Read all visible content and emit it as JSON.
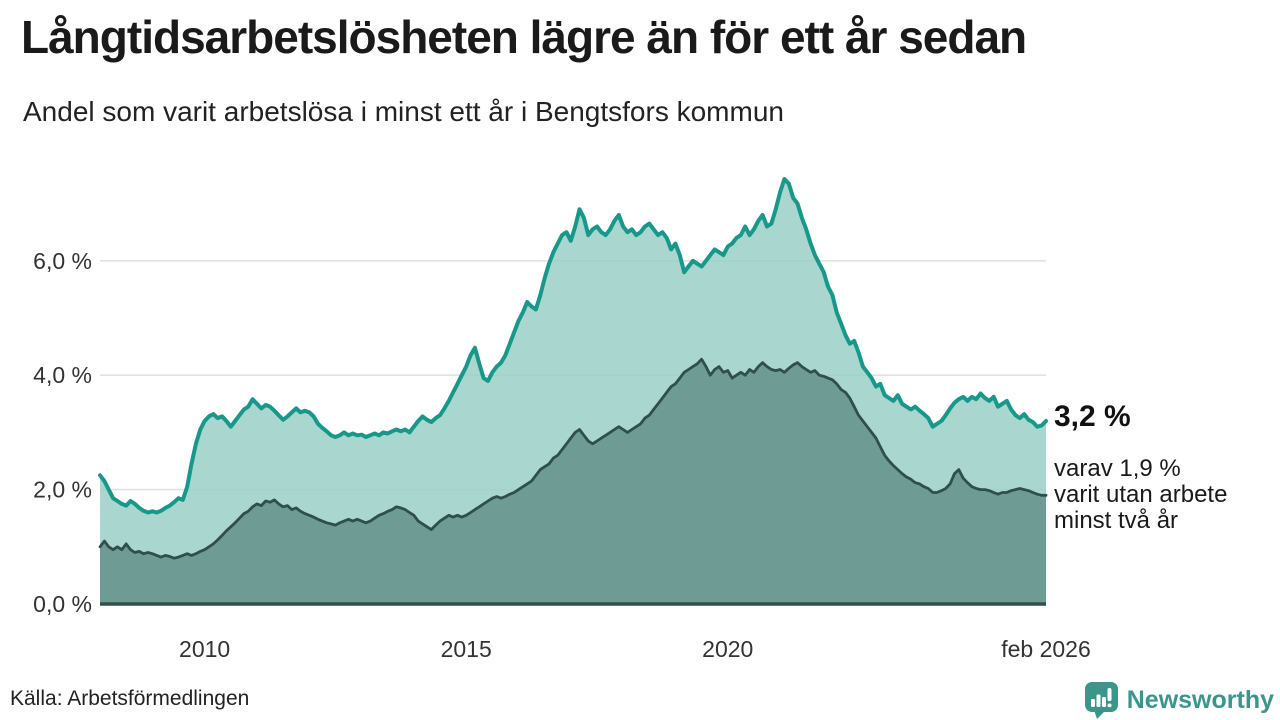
{
  "header": {
    "title": "Långtidsarbetslösheten lägre än för ett år sedan",
    "subtitle": "Andel som varit arbetslösa i minst ett år i Bengtsfors kommun"
  },
  "annotation": {
    "value_label": "3,2 %",
    "detail": "varav 1,9 %\nvarit utan arbete\nminst två år"
  },
  "footer": {
    "source": "Källa: Arbetsförmedlingen",
    "logo_text": "Newsworthy"
  },
  "colors": {
    "grid": "#e2e2e2",
    "baseline": "#35504c",
    "axis_text": "#333333",
    "logo_teal": "#3b958b",
    "title_text": "#1a1a1a"
  },
  "chart_data": {
    "type": "area",
    "title": "Långtidsarbetslösheten lägre än för ett år sedan",
    "subtitle": "Andel som varit arbetslösa i minst ett år i Bengtsfors kommun",
    "unit": "%",
    "x_domain": [
      2008.0,
      2026.0833
    ],
    "x_step": 0.0833333,
    "ylim": [
      0,
      7.6
    ],
    "grid": true,
    "legend": "none",
    "y_ticks": [
      {
        "value": 6,
        "label": "6,0 %"
      },
      {
        "value": 4,
        "label": "4,0 %"
      },
      {
        "value": 2,
        "label": "2,0 %"
      },
      {
        "value": 0,
        "label": "0,0 %"
      }
    ],
    "x_ticks": [
      {
        "value": 2010,
        "label": "2010"
      },
      {
        "value": 2015,
        "label": "2015"
      },
      {
        "value": 2020,
        "label": "2020"
      },
      {
        "value": 2026.0833,
        "label": "feb 2026"
      }
    ],
    "series": [
      {
        "name": "Arbetslösa minst ett år",
        "end_value_label": "3,2 %",
        "line_color": "#18988a",
        "line_width": 4,
        "fill_color": "#96cdc4",
        "fill_opacity": 0.82,
        "values": [
          2.25,
          2.15,
          2.0,
          1.85,
          1.8,
          1.75,
          1.72,
          1.8,
          1.75,
          1.68,
          1.63,
          1.6,
          1.62,
          1.6,
          1.63,
          1.68,
          1.72,
          1.78,
          1.85,
          1.82,
          2.05,
          2.45,
          2.8,
          3.05,
          3.2,
          3.28,
          3.32,
          3.25,
          3.28,
          3.2,
          3.1,
          3.2,
          3.3,
          3.4,
          3.45,
          3.58,
          3.5,
          3.42,
          3.48,
          3.45,
          3.38,
          3.3,
          3.22,
          3.28,
          3.35,
          3.42,
          3.35,
          3.38,
          3.35,
          3.28,
          3.15,
          3.08,
          3.02,
          2.95,
          2.92,
          2.95,
          3.0,
          2.95,
          2.98,
          2.95,
          2.96,
          2.92,
          2.95,
          2.98,
          2.95,
          3.0,
          2.98,
          3.02,
          3.05,
          3.02,
          3.05,
          3.0,
          3.1,
          3.2,
          3.28,
          3.22,
          3.18,
          3.25,
          3.3,
          3.42,
          3.55,
          3.7,
          3.85,
          4.0,
          4.15,
          4.35,
          4.48,
          4.2,
          3.95,
          3.9,
          4.05,
          4.15,
          4.22,
          4.35,
          4.55,
          4.75,
          4.95,
          5.1,
          5.28,
          5.2,
          5.15,
          5.4,
          5.7,
          5.95,
          6.15,
          6.3,
          6.45,
          6.5,
          6.35,
          6.6,
          6.9,
          6.75,
          6.45,
          6.55,
          6.6,
          6.5,
          6.45,
          6.55,
          6.7,
          6.8,
          6.6,
          6.5,
          6.55,
          6.45,
          6.5,
          6.6,
          6.65,
          6.55,
          6.45,
          6.5,
          6.4,
          6.2,
          6.3,
          6.1,
          5.8,
          5.9,
          6.0,
          5.95,
          5.9,
          6.0,
          6.1,
          6.2,
          6.15,
          6.1,
          6.25,
          6.3,
          6.4,
          6.45,
          6.6,
          6.45,
          6.55,
          6.7,
          6.8,
          6.6,
          6.65,
          6.9,
          7.2,
          7.43,
          7.35,
          7.1,
          7.0,
          6.75,
          6.55,
          6.3,
          6.1,
          5.95,
          5.8,
          5.55,
          5.4,
          5.1,
          4.9,
          4.7,
          4.55,
          4.6,
          4.4,
          4.15,
          4.05,
          3.95,
          3.8,
          3.85,
          3.65,
          3.6,
          3.55,
          3.65,
          3.5,
          3.45,
          3.4,
          3.45,
          3.38,
          3.32,
          3.25,
          3.1,
          3.15,
          3.2,
          3.3,
          3.42,
          3.52,
          3.58,
          3.62,
          3.55,
          3.62,
          3.58,
          3.68,
          3.6,
          3.55,
          3.62,
          3.45,
          3.5,
          3.55,
          3.4,
          3.3,
          3.25,
          3.32,
          3.22,
          3.18,
          3.1,
          3.12,
          3.2
        ]
      },
      {
        "name": "Arbetslösa minst två år",
        "end_value_label": "1,9 %",
        "line_color": "#2e4f4b",
        "line_width": 2.8,
        "fill_color": "#67938d",
        "fill_opacity": 0.88,
        "values": [
          1.0,
          1.1,
          1.0,
          0.95,
          1.0,
          0.95,
          1.05,
          0.95,
          0.9,
          0.92,
          0.88,
          0.9,
          0.88,
          0.85,
          0.82,
          0.85,
          0.83,
          0.8,
          0.82,
          0.85,
          0.88,
          0.85,
          0.88,
          0.92,
          0.95,
          1.0,
          1.05,
          1.12,
          1.2,
          1.28,
          1.35,
          1.42,
          1.5,
          1.58,
          1.62,
          1.7,
          1.75,
          1.72,
          1.8,
          1.78,
          1.82,
          1.75,
          1.7,
          1.72,
          1.65,
          1.68,
          1.62,
          1.58,
          1.55,
          1.52,
          1.48,
          1.45,
          1.42,
          1.4,
          1.38,
          1.42,
          1.45,
          1.48,
          1.45,
          1.48,
          1.45,
          1.42,
          1.45,
          1.5,
          1.55,
          1.58,
          1.62,
          1.65,
          1.7,
          1.68,
          1.65,
          1.6,
          1.55,
          1.45,
          1.4,
          1.35,
          1.3,
          1.38,
          1.45,
          1.5,
          1.55,
          1.52,
          1.55,
          1.52,
          1.55,
          1.6,
          1.65,
          1.7,
          1.75,
          1.8,
          1.85,
          1.88,
          1.85,
          1.88,
          1.92,
          1.95,
          2.0,
          2.05,
          2.1,
          2.15,
          2.25,
          2.35,
          2.4,
          2.45,
          2.55,
          2.6,
          2.7,
          2.8,
          2.9,
          3.0,
          3.05,
          2.95,
          2.85,
          2.8,
          2.85,
          2.9,
          2.95,
          3.0,
          3.05,
          3.1,
          3.05,
          3.0,
          3.05,
          3.1,
          3.15,
          3.25,
          3.3,
          3.4,
          3.5,
          3.6,
          3.7,
          3.8,
          3.85,
          3.95,
          4.05,
          4.1,
          4.15,
          4.2,
          4.28,
          4.15,
          4.0,
          4.1,
          4.15,
          4.05,
          4.08,
          3.95,
          4.0,
          4.05,
          4.0,
          4.1,
          4.05,
          4.15,
          4.22,
          4.15,
          4.1,
          4.08,
          4.1,
          4.05,
          4.12,
          4.18,
          4.22,
          4.15,
          4.1,
          4.05,
          4.08,
          4.0,
          3.98,
          3.95,
          3.92,
          3.85,
          3.75,
          3.7,
          3.6,
          3.45,
          3.3,
          3.2,
          3.1,
          3.0,
          2.9,
          2.75,
          2.6,
          2.5,
          2.42,
          2.35,
          2.28,
          2.22,
          2.18,
          2.12,
          2.1,
          2.05,
          2.02,
          1.95,
          1.95,
          1.98,
          2.02,
          2.1,
          2.28,
          2.35,
          2.2,
          2.12,
          2.05,
          2.02,
          2.0,
          2.0,
          1.98,
          1.95,
          1.92,
          1.95,
          1.95,
          1.98,
          2.0,
          2.02,
          2.0,
          1.98,
          1.95,
          1.92,
          1.9,
          1.9
        ]
      }
    ]
  }
}
